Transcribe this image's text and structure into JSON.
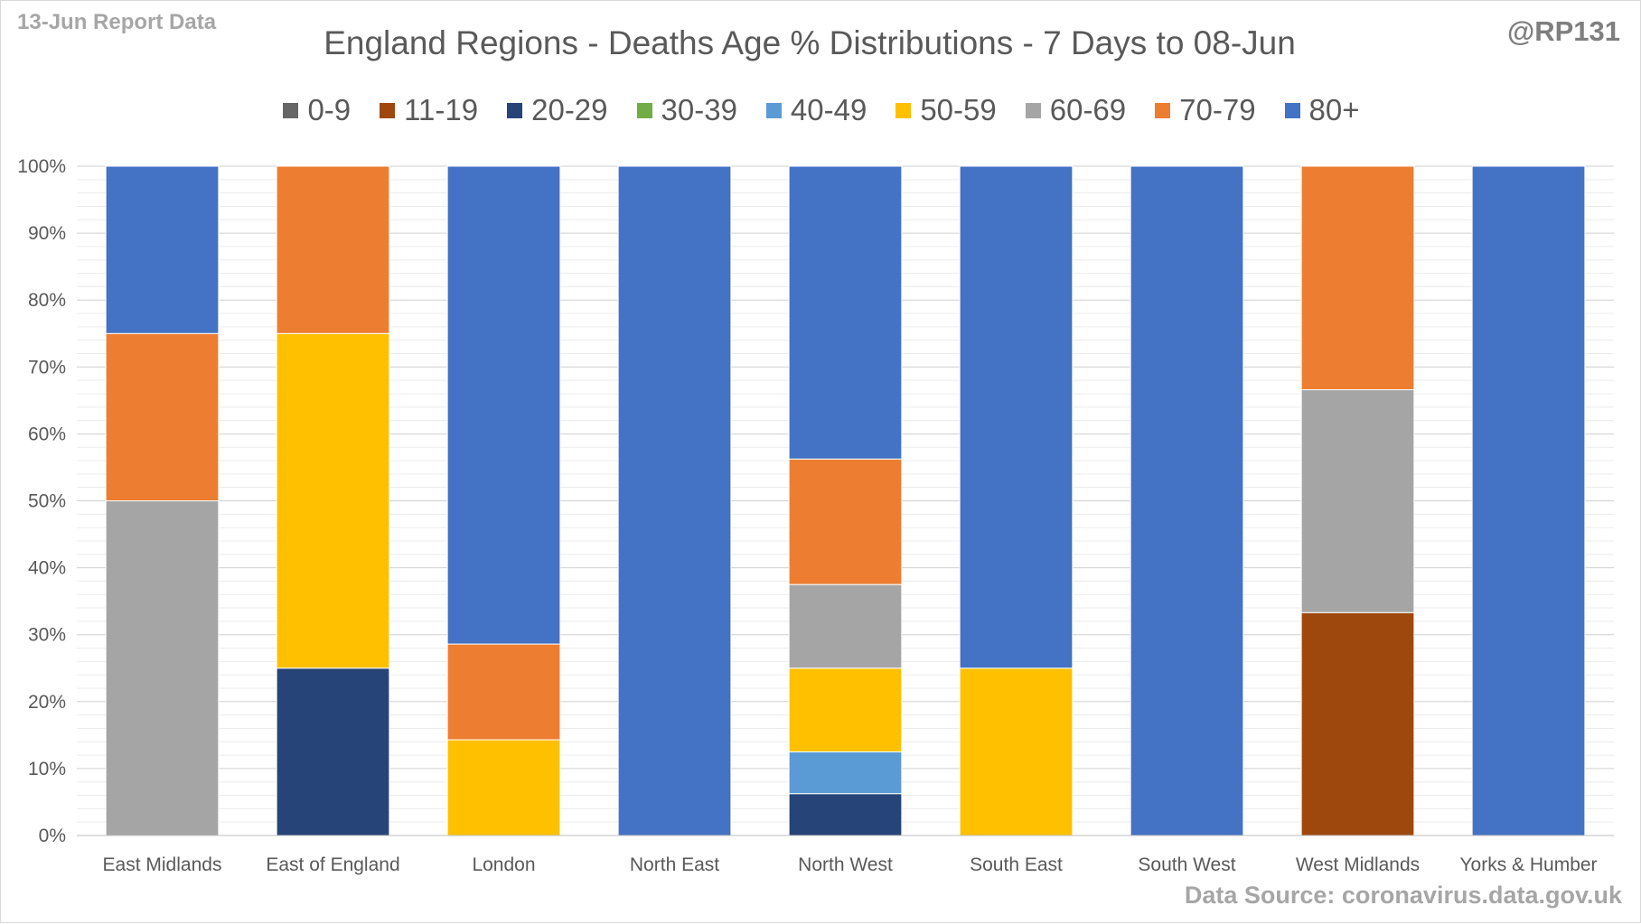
{
  "header": {
    "left_note": "13-Jun Report Data",
    "handle": "@RP131",
    "source": "Data Source: coronavirus.data.gov.uk"
  },
  "chart_data": {
    "type": "bar",
    "stacked": true,
    "title": "England Regions - Deaths Age % Distributions - 7 Days to 08-Jun",
    "xlabel": "",
    "ylabel": "",
    "ylim": [
      0,
      100
    ],
    "y_ticks": [
      "0%",
      "10%",
      "20%",
      "30%",
      "40%",
      "50%",
      "60%",
      "70%",
      "80%",
      "90%",
      "100%"
    ],
    "grid": true,
    "legend_position": "top",
    "categories": [
      "East Midlands",
      "East of England",
      "London",
      "North East",
      "North West",
      "South East",
      "South West",
      "West Midlands",
      "Yorks & Humber"
    ],
    "series": [
      {
        "name": "0-9",
        "color": "#666666",
        "values": [
          0,
          0,
          0,
          0,
          0,
          0,
          0,
          0,
          0
        ]
      },
      {
        "name": "11-19",
        "color": "#9e480e",
        "values": [
          0,
          0,
          0,
          0,
          0,
          0,
          0,
          33.3,
          0
        ]
      },
      {
        "name": "20-29",
        "color": "#264478",
        "values": [
          0,
          25,
          0,
          0,
          6.25,
          0,
          0,
          0,
          0
        ]
      },
      {
        "name": "30-39",
        "color": "#70ad47",
        "values": [
          0,
          0,
          0,
          0,
          0,
          0,
          0,
          0,
          0
        ]
      },
      {
        "name": "40-49",
        "color": "#5b9bd5",
        "values": [
          0,
          0,
          0,
          0,
          6.25,
          0,
          0,
          0,
          0
        ]
      },
      {
        "name": "50-59",
        "color": "#ffc000",
        "values": [
          0,
          50,
          14.3,
          0,
          12.5,
          25,
          0,
          0,
          0
        ]
      },
      {
        "name": "60-69",
        "color": "#a5a5a5",
        "values": [
          50,
          0,
          0,
          0,
          12.5,
          0,
          0,
          33.3,
          0
        ]
      },
      {
        "name": "70-79",
        "color": "#ed7d31",
        "values": [
          25,
          25,
          14.3,
          0,
          18.75,
          0,
          0,
          33.4,
          0
        ]
      },
      {
        "name": "80+",
        "color": "#4472c4",
        "values": [
          25,
          0,
          71.4,
          100,
          43.75,
          75,
          100,
          0,
          100
        ]
      }
    ]
  }
}
